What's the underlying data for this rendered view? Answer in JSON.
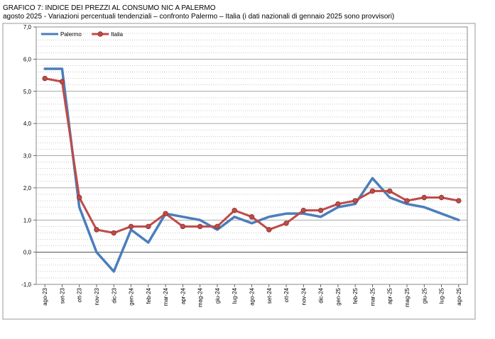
{
  "header": {
    "title": "GRAFICO 7: INDICE DEI PREZZI AL CONSUMO NIC A PALERMO",
    "subtitle": "agosto 2025 - Variazioni percentuali tendenziali – confronto Palermo – Italia (i dati nazionali di gennaio 2025 sono provvisori)"
  },
  "chart_data": {
    "type": "line",
    "title": "GRAFICO 7: INDICE DEI PREZZI AL CONSUMO NIC A PALERMO",
    "subtitle": "agosto 2025 - Variazioni percentuali tendenziali – confronto Palermo – Italia (i dati nazionali di gennaio 2025 sono provvisori)",
    "xlabel": "",
    "ylabel": "",
    "ylim": [
      -1.0,
      7.0
    ],
    "yticks": [
      "-1,0",
      "0,0",
      "1,0",
      "2,0",
      "3,0",
      "4,0",
      "5,0",
      "6,0",
      "7,0"
    ],
    "grid": true,
    "legend_position": "top-left",
    "categories": [
      "ago-23",
      "set-23",
      "ott-23",
      "nov-23",
      "dic-23",
      "gen-24",
      "feb-24",
      "mar-24",
      "apr-24",
      "mag-24",
      "giu-24",
      "lug-24",
      "ago-24",
      "set-24",
      "ott-24",
      "nov-24",
      "dic-24",
      "gen-25",
      "feb-25",
      "mar-25",
      "apr-25",
      "mag-25",
      "giu-25",
      "lug-25",
      "ago-25"
    ],
    "series": [
      {
        "name": "Palermo",
        "color": "#4a7ebb",
        "marker": false,
        "values": [
          5.7,
          5.7,
          1.4,
          0.0,
          -0.6,
          0.7,
          0.3,
          1.2,
          1.1,
          1.0,
          0.7,
          1.1,
          0.9,
          1.1,
          1.2,
          1.2,
          1.1,
          1.4,
          1.5,
          2.3,
          1.7,
          1.5,
          1.4,
          1.2,
          1.0
        ]
      },
      {
        "name": "Italia",
        "color": "#be4b48",
        "marker": true,
        "values": [
          5.4,
          5.3,
          1.7,
          0.7,
          0.6,
          0.8,
          0.8,
          1.2,
          0.8,
          0.8,
          0.8,
          1.3,
          1.1,
          0.7,
          0.9,
          1.3,
          1.3,
          1.5,
          1.6,
          1.9,
          1.9,
          1.6,
          1.7,
          1.7,
          1.6
        ]
      }
    ]
  }
}
